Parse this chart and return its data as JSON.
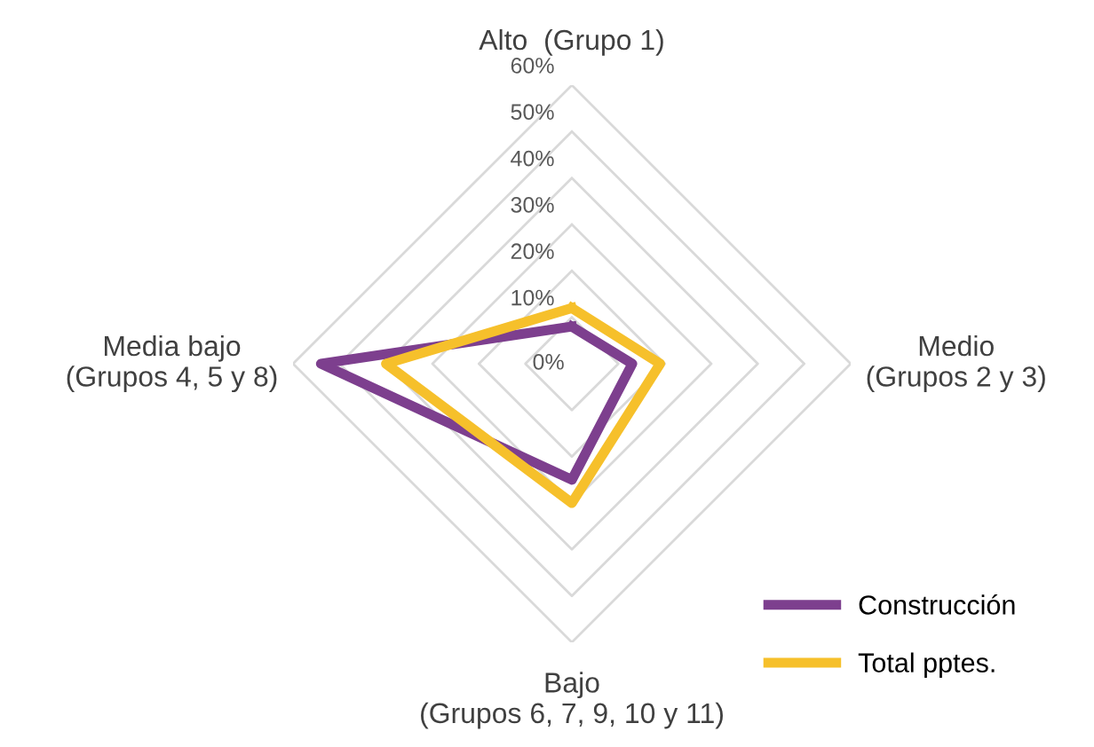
{
  "chart_data": {
    "type": "radar",
    "categories": [
      "Alto  (Grupo 1)",
      "Medio\n(Grupos 2 y 3)",
      "Bajo\n(Grupos 6, 7, 9, 10 y 11)",
      "Media bajo\n(Grupos 4, 5 y 8)"
    ],
    "series": [
      {
        "name": "Construcción",
        "color": "#7d3f8e",
        "values": [
          8,
          13,
          25,
          54
        ]
      },
      {
        "name": "Total pptes.",
        "color": "#f6c02b",
        "values": [
          12,
          19,
          30,
          40
        ]
      }
    ],
    "ylim": [
      0,
      60
    ],
    "yticks": [
      {
        "value": 0,
        "label": "0%"
      },
      {
        "value": 10,
        "label": "10%"
      },
      {
        "value": 20,
        "label": "20%"
      },
      {
        "value": 30,
        "label": "30%"
      },
      {
        "value": 40,
        "label": "40%"
      },
      {
        "value": 50,
        "label": "50%"
      },
      {
        "value": 60,
        "label": "60%"
      }
    ],
    "grid": true,
    "legend": "bottom right",
    "marker": "none",
    "line_style": "solid"
  }
}
